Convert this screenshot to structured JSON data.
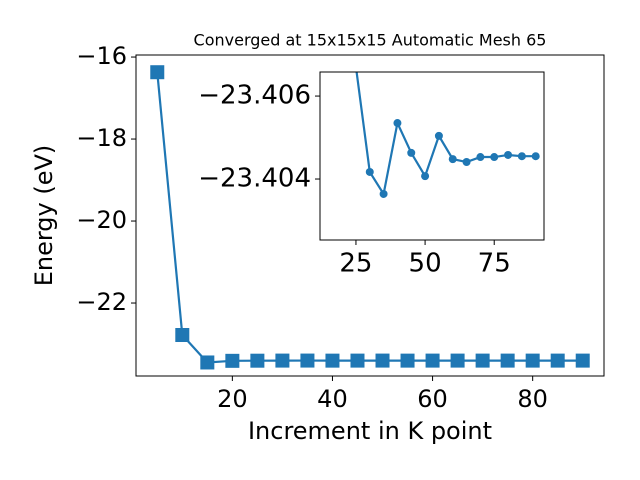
{
  "chart_data": [
    {
      "type": "line",
      "title": "Converged at 15x15x15 Automatic Mesh 65",
      "x_label": "Increment in K point",
      "y_label": "Energy (eV)",
      "x": [
        5,
        10,
        15,
        20,
        25,
        30,
        35,
        40,
        45,
        50,
        55,
        60,
        65,
        70,
        75,
        80,
        85,
        90
      ],
      "series": [
        {
          "color": "#1f77b4",
          "marker": "square",
          "values": [
            -16.37,
            -22.78,
            -23.45,
            -23.41,
            -23.4067,
            -23.40417,
            -23.40364,
            -23.40535,
            -23.40463,
            -23.40407,
            -23.40504,
            -23.40448,
            -23.40441,
            -23.40453,
            -23.40453,
            -23.40458,
            -23.40455,
            -23.40455
          ]
        }
      ],
      "xlim": [
        0.75,
        94.25
      ],
      "ylim": [
        -23.78,
        -15.95
      ],
      "xticks": [
        20,
        40,
        60,
        80
      ],
      "yticks": [
        {
          "value": -16,
          "label": "−16"
        },
        {
          "value": -18,
          "label": "−18"
        },
        {
          "value": -20,
          "label": "−20"
        },
        {
          "value": -22,
          "label": "−22"
        }
      ]
    },
    {
      "type": "line",
      "x": [
        25,
        30,
        35,
        40,
        45,
        50,
        55,
        60,
        65,
        70,
        75,
        80,
        85,
        90
      ],
      "series": [
        {
          "color": "#1f77b4",
          "marker": "circle",
          "values": [
            -23.4067,
            -23.40417,
            -23.40364,
            -23.40535,
            -23.40463,
            -23.40407,
            -23.40504,
            -23.40448,
            -23.40441,
            -23.40453,
            -23.40453,
            -23.40458,
            -23.40455,
            -23.40455
          ]
        }
      ],
      "xlim": [
        12,
        93
      ],
      "ylim": [
        -23.40253,
        -23.40658
      ],
      "xticks": [
        25,
        50,
        75
      ],
      "yticks": [
        {
          "value": -23.406,
          "label": "−23.406"
        },
        {
          "value": -23.404,
          "label": "−23.404"
        }
      ]
    }
  ]
}
